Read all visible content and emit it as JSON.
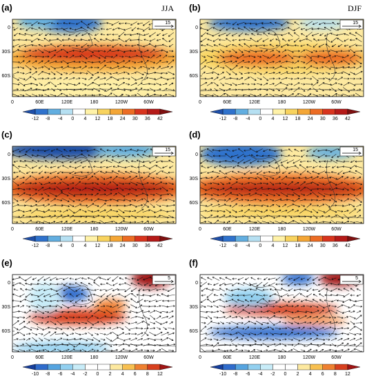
{
  "panels": [
    {
      "label": "(a)",
      "season": "JJA",
      "ref": "15",
      "colorbar": [
        -12,
        -8,
        -4,
        0,
        4,
        12,
        18,
        24,
        30,
        36,
        42
      ]
    },
    {
      "label": "(b)",
      "season": "DJF",
      "ref": "15",
      "colorbar": [
        -12,
        -8,
        -4,
        0,
        4,
        12,
        18,
        24,
        30,
        36,
        42
      ]
    },
    {
      "label": "(c)",
      "ref": "15",
      "colorbar": [
        -12,
        -8,
        -4,
        0,
        4,
        12,
        18,
        24,
        30,
        36,
        42
      ]
    },
    {
      "label": "(d)",
      "ref": "15",
      "colorbar": [
        -12,
        -8,
        -4,
        0,
        4,
        12,
        18,
        24,
        30,
        36,
        42
      ]
    },
    {
      "label": "(e)",
      "ref": "5",
      "colorbar": [
        -10,
        -8,
        -6,
        -4,
        -2,
        0,
        2,
        4,
        6,
        8,
        12
      ]
    },
    {
      "label": "(f)",
      "ref": "5",
      "colorbar": [
        -10,
        -8,
        -6,
        -4,
        -2,
        0,
        2,
        4,
        6,
        8,
        12
      ]
    }
  ],
  "lat_labels": [
    "0",
    "30S",
    "60S"
  ],
  "lon_labels": [
    "0",
    "60E",
    "120E",
    "180",
    "120W",
    "60W"
  ]
}
